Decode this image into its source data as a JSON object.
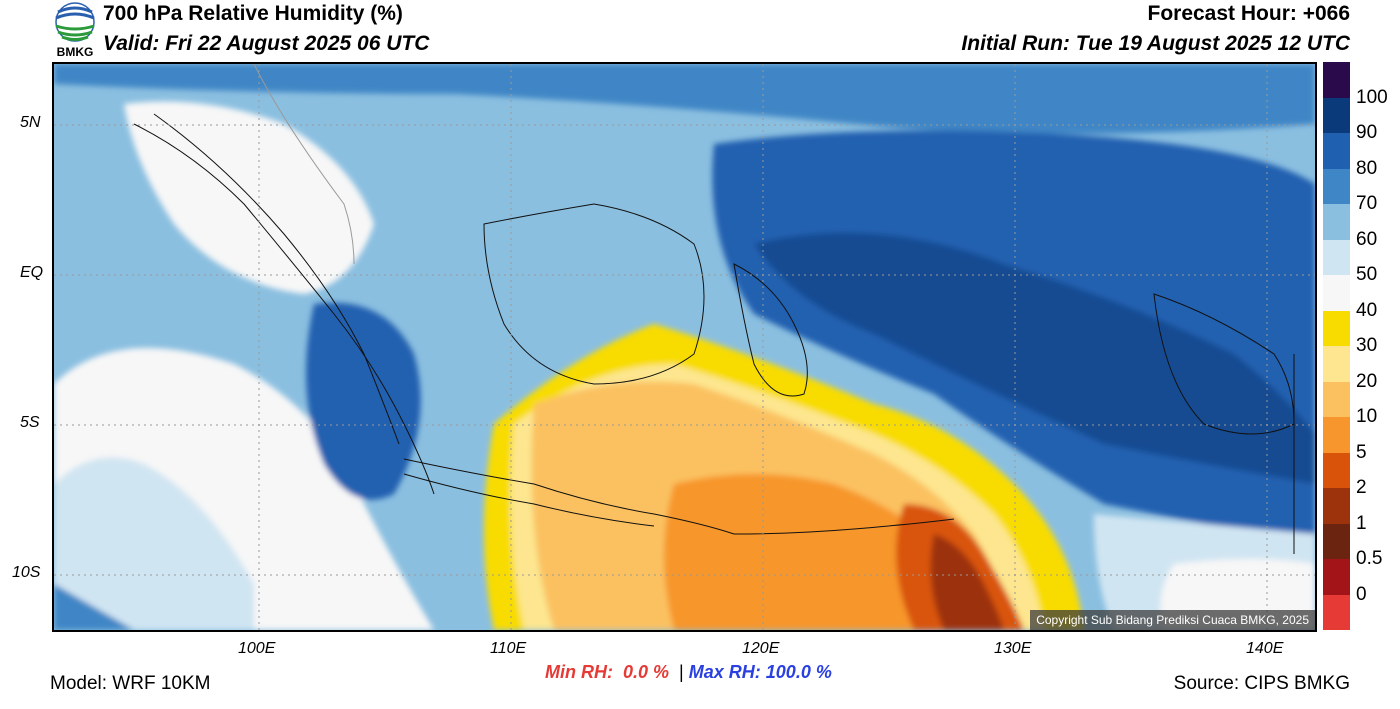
{
  "header": {
    "title": "700 hPa Relative Humidity (%)",
    "valid": "Valid: Fri 22 August 2025 06 UTC",
    "forecast_hour": "Forecast Hour: +066",
    "initial_run": "Initial Run: Tue 19 August 2025 12 UTC",
    "logo_text": "BMKG"
  },
  "map": {
    "lat_labels": [
      "5N",
      "EQ",
      "5S",
      "10S"
    ],
    "lon_labels": [
      "100E",
      "110E",
      "120E",
      "130E",
      "140E"
    ],
    "copyright": "Copyright Sub Bidang Prediksi Cuaca BMKG, 2025"
  },
  "colorbar": {
    "labels": [
      "100",
      "90",
      "80",
      "70",
      "60",
      "50",
      "40",
      "30",
      "20",
      "10",
      "5",
      "2",
      "1",
      "0.5",
      "0"
    ],
    "colors": [
      "#2a0a4a",
      "#0a3a7a",
      "#2060b0",
      "#3f86c6",
      "#8bbfe0",
      "#d0e5f2",
      "#f7f7f7",
      "#f8dc00",
      "#fde68f",
      "#fbc160",
      "#f7962c",
      "#d9540a",
      "#9c330c",
      "#6a2410",
      "#a31419",
      "#e53a35"
    ]
  },
  "footer": {
    "model": "Model: WRF 10KM",
    "min_label": "Min RH:",
    "min_value": "0.0 %",
    "separator": "|",
    "max_label": "Max RH:",
    "max_value": "100.0 %",
    "source": "Source: CIPS BMKG"
  },
  "colors": {
    "min_color": "#e53a35",
    "max_color": "#2a40e0"
  }
}
